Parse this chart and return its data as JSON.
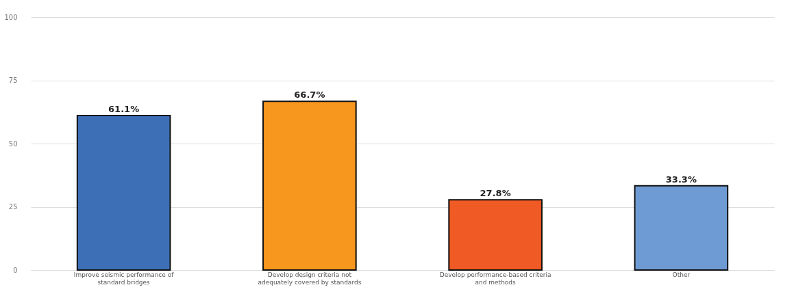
{
  "chart_data": {
    "type": "bar",
    "categories": [
      "Improve seismic performance of standard bridges",
      "Develop design criteria not adequately covered by standards",
      "Develop performance-based criteria and methods",
      "Other"
    ],
    "values": [
      61.1,
      66.7,
      27.8,
      33.3
    ],
    "colors": [
      "#3d6fb6",
      "#f7971e",
      "#f05a24",
      "#6f9bd4"
    ],
    "value_labels": [
      "61.1%",
      "66.7%",
      "27.8%",
      "33.3%"
    ],
    "ylim": [
      0,
      100
    ],
    "yticks": [
      0,
      25,
      50,
      75,
      100
    ],
    "grid": "y"
  }
}
